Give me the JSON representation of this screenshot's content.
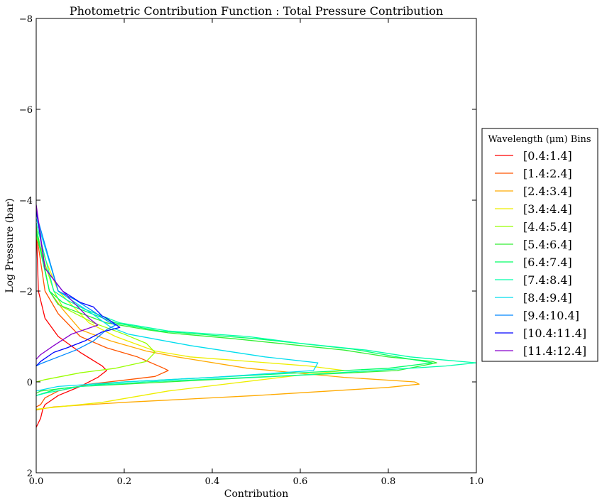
{
  "chart_data": {
    "type": "line",
    "title": "Photometric Contribution Function : Total Pressure Contribution",
    "xlabel": "Contribution",
    "ylabel": "Log Pressure (bar)",
    "xlim": [
      0.0,
      1.0
    ],
    "ylim": [
      2,
      -8
    ],
    "y_inverted": true,
    "grid": false,
    "x_ticks": [
      0.0,
      0.2,
      0.4,
      0.6,
      0.8,
      1.0
    ],
    "x_tick_labels": [
      "0.0",
      "0.2",
      "0.4",
      "0.6",
      "0.8",
      "1.0"
    ],
    "y_ticks": [
      2,
      0,
      -2,
      -4,
      -6,
      -8
    ],
    "y_tick_labels": [
      "2",
      "0",
      "−2",
      "−4",
      "−6",
      "−8"
    ],
    "legend": {
      "title": "Wavelength (μm) Bins",
      "placement": "right-outside"
    },
    "series": [
      {
        "name": "[0.4:1.4]",
        "color": "#ff0000",
        "points": [
          [
            0,
            -3.5
          ],
          [
            0.005,
            -2.0
          ],
          [
            0.02,
            -1.4
          ],
          [
            0.05,
            -1.0
          ],
          [
            0.1,
            -0.65
          ],
          [
            0.15,
            -0.35
          ],
          [
            0.16,
            -0.25
          ],
          [
            0.14,
            -0.1
          ],
          [
            0.1,
            0.1
          ],
          [
            0.05,
            0.3
          ],
          [
            0.02,
            0.5
          ],
          [
            0.015,
            0.6
          ],
          [
            0.01,
            0.8
          ],
          [
            0.005,
            0.9
          ],
          [
            0,
            1.0
          ]
        ]
      },
      {
        "name": "[1.4:2.4]",
        "color": "#ff5500",
        "points": [
          [
            0,
            -3.3
          ],
          [
            0.02,
            -2.0
          ],
          [
            0.05,
            -1.5
          ],
          [
            0.1,
            -1.0
          ],
          [
            0.16,
            -0.75
          ],
          [
            0.23,
            -0.55
          ],
          [
            0.29,
            -0.3
          ],
          [
            0.3,
            -0.25
          ],
          [
            0.27,
            -0.12
          ],
          [
            0.21,
            -0.05
          ],
          [
            0.12,
            0.05
          ],
          [
            0.05,
            0.2
          ],
          [
            0.02,
            0.35
          ],
          [
            0.01,
            0.5
          ],
          [
            0,
            0.55
          ]
        ]
      },
      {
        "name": "[2.4:3.4]",
        "color": "#ffaa00",
        "points": [
          [
            0,
            -3.4
          ],
          [
            0.03,
            -2.0
          ],
          [
            0.06,
            -1.6
          ],
          [
            0.1,
            -1.15
          ],
          [
            0.17,
            -0.9
          ],
          [
            0.25,
            -0.68
          ],
          [
            0.32,
            -0.55
          ],
          [
            0.48,
            -0.3
          ],
          [
            0.7,
            -0.1
          ],
          [
            0.86,
            0.0
          ],
          [
            0.87,
            0.05
          ],
          [
            0.8,
            0.12
          ],
          [
            0.5,
            0.3
          ],
          [
            0.2,
            0.45
          ],
          [
            0.04,
            0.55
          ],
          [
            0.01,
            0.6
          ],
          [
            0,
            0.62
          ]
        ]
      },
      {
        "name": "[3.4:4.4]",
        "color": "#eeee00",
        "points": [
          [
            0,
            -3.2
          ],
          [
            0.05,
            -2.0
          ],
          [
            0.08,
            -1.7
          ],
          [
            0.12,
            -1.3
          ],
          [
            0.18,
            -1.0
          ],
          [
            0.27,
            -0.68
          ],
          [
            0.35,
            -0.55
          ],
          [
            0.62,
            -0.35
          ],
          [
            0.7,
            -0.25
          ],
          [
            0.6,
            -0.15
          ],
          [
            0.3,
            0.2
          ],
          [
            0.15,
            0.45
          ],
          [
            0.05,
            0.55
          ],
          [
            0.02,
            0.58
          ],
          [
            0,
            0.6
          ]
        ]
      },
      {
        "name": "[4.4:5.4]",
        "color": "#99ff00",
        "points": [
          [
            0,
            -3.2
          ],
          [
            0.04,
            -2.0
          ],
          [
            0.06,
            -1.65
          ],
          [
            0.13,
            -1.3
          ],
          [
            0.2,
            -1.05
          ],
          [
            0.25,
            -0.85
          ],
          [
            0.27,
            -0.65
          ],
          [
            0.25,
            -0.45
          ],
          [
            0.18,
            -0.3
          ],
          [
            0.1,
            -0.2
          ],
          [
            0.02,
            -0.05
          ],
          [
            0,
            0.0
          ]
        ]
      },
      {
        "name": "[5.4:6.4]",
        "color": "#33ee33",
        "points": [
          [
            0,
            -3.4
          ],
          [
            0.03,
            -2.0
          ],
          [
            0.05,
            -1.7
          ],
          [
            0.09,
            -1.55
          ],
          [
            0.16,
            -1.3
          ],
          [
            0.25,
            -1.15
          ],
          [
            0.3,
            -1.08
          ],
          [
            0.45,
            -0.95
          ],
          [
            0.7,
            -0.7
          ],
          [
            0.8,
            -0.55
          ],
          [
            0.9,
            -0.45
          ],
          [
            0.91,
            -0.42
          ],
          [
            0.82,
            -0.25
          ],
          [
            0.5,
            -0.1
          ],
          [
            0.3,
            0.0
          ],
          [
            0.1,
            0.1
          ],
          [
            0.01,
            0.2
          ],
          [
            0,
            0.25
          ]
        ]
      },
      {
        "name": "[6.4:7.4]",
        "color": "#00ff66",
        "points": [
          [
            0,
            -3.3
          ],
          [
            0.03,
            -2.0
          ],
          [
            0.06,
            -1.75
          ],
          [
            0.1,
            -1.6
          ],
          [
            0.18,
            -1.3
          ],
          [
            0.28,
            -1.12
          ],
          [
            0.5,
            -0.95
          ],
          [
            0.72,
            -0.72
          ],
          [
            0.85,
            -0.5
          ],
          [
            0.9,
            -0.42
          ],
          [
            0.8,
            -0.3
          ],
          [
            0.5,
            -0.15
          ],
          [
            0.2,
            0.0
          ],
          [
            0.05,
            0.15
          ],
          [
            0,
            0.3
          ]
        ]
      },
      {
        "name": "[7.4:8.4]",
        "color": "#00ffaa",
        "points": [
          [
            0,
            -3.5
          ],
          [
            0.04,
            -2.0
          ],
          [
            0.07,
            -1.8
          ],
          [
            0.11,
            -1.6
          ],
          [
            0.19,
            -1.3
          ],
          [
            0.3,
            -1.12
          ],
          [
            0.48,
            -1.0
          ],
          [
            0.6,
            -0.85
          ],
          [
            0.75,
            -0.7
          ],
          [
            0.85,
            -0.55
          ],
          [
            0.93,
            -0.48
          ],
          [
            1.0,
            -0.42
          ],
          [
            0.93,
            -0.35
          ],
          [
            0.6,
            -0.15
          ],
          [
            0.25,
            0.0
          ],
          [
            0.1,
            0.1
          ],
          [
            0.02,
            0.25
          ],
          [
            0,
            0.3
          ]
        ]
      },
      {
        "name": "[8.4:9.4]",
        "color": "#00ddee",
        "points": [
          [
            0,
            -3.6
          ],
          [
            0.05,
            -2.0
          ],
          [
            0.08,
            -1.8
          ],
          [
            0.12,
            -1.55
          ],
          [
            0.17,
            -1.2
          ],
          [
            0.21,
            -1.05
          ],
          [
            0.35,
            -0.8
          ],
          [
            0.52,
            -0.55
          ],
          [
            0.64,
            -0.42
          ],
          [
            0.63,
            -0.25
          ],
          [
            0.4,
            -0.1
          ],
          [
            0.2,
            0.0
          ],
          [
            0.05,
            0.1
          ],
          [
            0,
            0.2
          ]
        ]
      },
      {
        "name": "[9.4:10.4]",
        "color": "#0088ff",
        "points": [
          [
            0,
            -3.7
          ],
          [
            0.05,
            -2.0
          ],
          [
            0.09,
            -1.8
          ],
          [
            0.13,
            -1.55
          ],
          [
            0.16,
            -1.35
          ],
          [
            0.18,
            -1.25
          ],
          [
            0.16,
            -1.15
          ],
          [
            0.13,
            -0.9
          ],
          [
            0.09,
            -0.7
          ],
          [
            0.05,
            -0.55
          ],
          [
            0.01,
            -0.4
          ],
          [
            0,
            -0.35
          ]
        ]
      },
      {
        "name": "[10.4:11.4]",
        "color": "#0000ff",
        "points": [
          [
            0,
            -3.8
          ],
          [
            0.02,
            -2.5
          ],
          [
            0.06,
            -2.0
          ],
          [
            0.1,
            -1.75
          ],
          [
            0.13,
            -1.65
          ],
          [
            0.15,
            -1.45
          ],
          [
            0.16,
            -1.4
          ],
          [
            0.19,
            -1.2
          ],
          [
            0.15,
            -1.1
          ],
          [
            0.11,
            -0.9
          ],
          [
            0.07,
            -0.75
          ],
          [
            0.04,
            -0.65
          ],
          [
            0.01,
            -0.45
          ],
          [
            0,
            -0.35
          ]
        ]
      },
      {
        "name": "[11.4:12.4]",
        "color": "#8800cc",
        "points": [
          [
            0,
            -3.9
          ],
          [
            0.02,
            -2.5
          ],
          [
            0.06,
            -2.0
          ],
          [
            0.09,
            -1.7
          ],
          [
            0.11,
            -1.5
          ],
          [
            0.12,
            -1.4
          ],
          [
            0.14,
            -1.25
          ],
          [
            0.11,
            -1.15
          ],
          [
            0.08,
            -1.05
          ],
          [
            0.04,
            -0.8
          ],
          [
            0.01,
            -0.6
          ],
          [
            0,
            -0.5
          ]
        ]
      }
    ]
  }
}
